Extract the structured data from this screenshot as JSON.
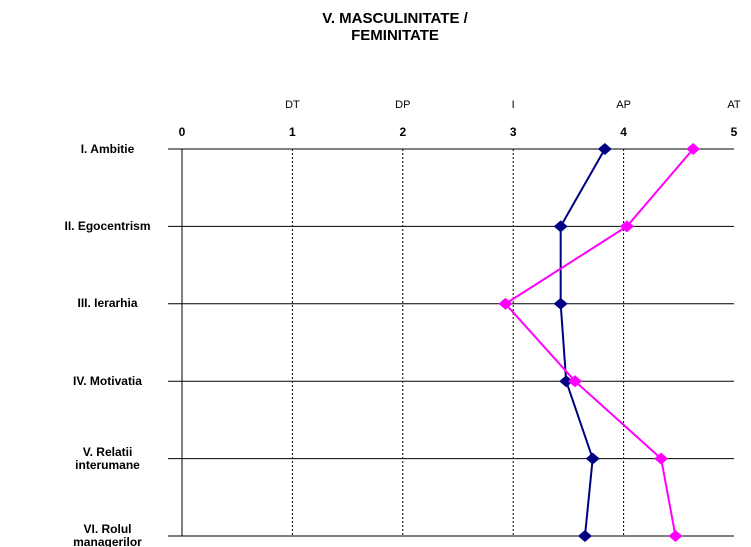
{
  "chart_data": {
    "type": "line",
    "title": "V. MASCULINITATE /\nFEMINITATE",
    "categories": [
      "I. Ambitie",
      "II. Egocentrism",
      "III. Ierarhia",
      "IV. Motivatia",
      "V. Relatii\ninterumane",
      "VI. Rolul\nmanagerilor"
    ],
    "series": [
      {
        "color": "#000080",
        "values": [
          3.83,
          3.43,
          3.43,
          3.48,
          3.72,
          3.65
        ]
      },
      {
        "color": "#ff00ff",
        "values": [
          4.63,
          4.03,
          2.93,
          3.56,
          4.34,
          4.47
        ]
      }
    ],
    "xlim": [
      0,
      5
    ],
    "xticks": [
      0,
      1,
      2,
      3,
      4,
      5
    ],
    "scale_labels": [
      "DT",
      "DP",
      "I",
      "AP",
      "AT"
    ],
    "grid": true
  }
}
